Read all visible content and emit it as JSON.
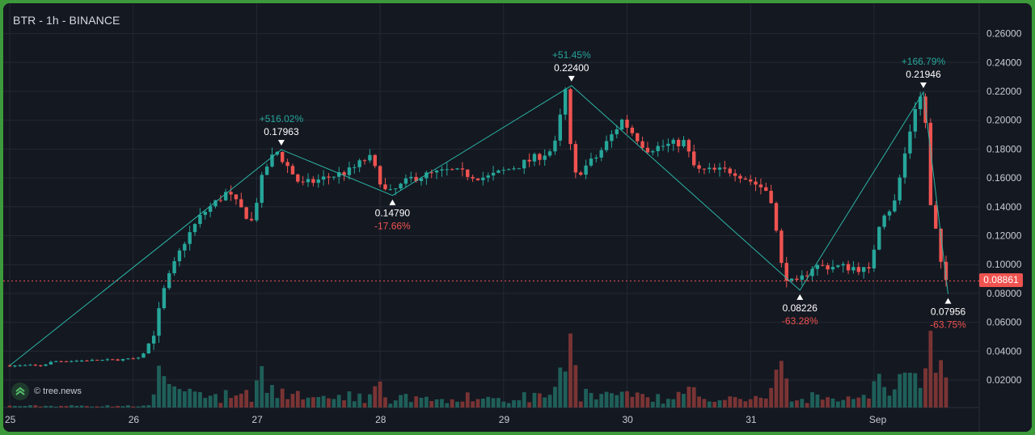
{
  "header": {
    "title": "BTR - 1h - BINANCE"
  },
  "watermark": {
    "text": "© tree.news",
    "icon": "tree-chevrons-icon"
  },
  "last_price_label": "0.08861",
  "colors": {
    "background": "#141821",
    "up": "#26a69a",
    "down": "#ef5350",
    "volume_up": "#1f5f59",
    "volume_down": "#7a3434",
    "zigzag": "#2bb4a4",
    "grid": "#232834",
    "axis_text": "#c9ccd1",
    "last_price_line": "#ef5350"
  },
  "chart_data": {
    "type": "candlestick",
    "title": "BTR - 1h - BINANCE",
    "x_axis": {
      "ticks": [
        "25",
        "26",
        "27",
        "28",
        "29",
        "30",
        "31",
        "Sep"
      ]
    },
    "y_axis": {
      "range": [
        0.0,
        0.27
      ],
      "ticks": [
        "0.02000",
        "0.04000",
        "0.06000",
        "0.08000",
        "0.10000",
        "0.12000",
        "0.14000",
        "0.16000",
        "0.18000",
        "0.20000",
        "0.22000",
        "0.24000",
        "0.26000"
      ]
    },
    "last_price": 0.08861,
    "grid": true,
    "price_path": [
      [
        "25",
        0.03
      ],
      [
        "25.3",
        0.03
      ],
      [
        "25.4",
        0.033
      ],
      [
        "25.9",
        0.034
      ],
      [
        "26.1",
        0.035
      ],
      [
        "26.2",
        0.05
      ],
      [
        "26.3",
        0.085
      ],
      [
        "26.45",
        0.115
      ],
      [
        "26.6",
        0.135
      ],
      [
        "26.8",
        0.15
      ],
      [
        "27.0",
        0.13
      ],
      [
        "27.1",
        0.165
      ],
      [
        "27.2",
        0.179
      ],
      [
        "27.4",
        0.155
      ],
      [
        "27.6",
        0.16
      ],
      [
        "27.8",
        0.165
      ],
      [
        "27.95",
        0.175
      ],
      [
        "28.1",
        0.148
      ],
      [
        "28.3",
        0.16
      ],
      [
        "28.6",
        0.165
      ],
      [
        "28.9",
        0.16
      ],
      [
        "29.2",
        0.17
      ],
      [
        "29.45",
        0.18
      ],
      [
        "29.55",
        0.224
      ],
      [
        "29.6",
        0.16
      ],
      [
        "29.8",
        0.175
      ],
      [
        "30.0",
        0.2
      ],
      [
        "30.2",
        0.18
      ],
      [
        "30.5",
        0.185
      ],
      [
        "30.6",
        0.165
      ],
      [
        "30.9",
        0.165
      ],
      [
        "31.2",
        0.15
      ],
      [
        "31.3",
        0.095
      ],
      [
        "31.4",
        0.085
      ],
      [
        "31.55",
        0.099
      ],
      [
        "31.9",
        0.098
      ],
      [
        "32.0",
        0.095
      ],
      [
        "32.1",
        0.135
      ],
      [
        "32.2",
        0.14
      ],
      [
        "32.3",
        0.18
      ],
      [
        "32.4",
        0.219
      ],
      [
        "32.45",
        0.21
      ],
      [
        "32.5",
        0.14
      ],
      [
        "32.55",
        0.12
      ],
      [
        "32.6",
        0.089
      ]
    ],
    "zigzag_points": [
      {
        "price": 0.17963,
        "label": "0.17963",
        "change": "+516.02%",
        "kind": "high"
      },
      {
        "price": 0.1479,
        "label": "0.14790",
        "change": "-17.66%",
        "kind": "low"
      },
      {
        "price": 0.224,
        "label": "0.22400",
        "change": "+51.45%",
        "kind": "high"
      },
      {
        "price": 0.08226,
        "label": "0.08226",
        "change": "-63.28%",
        "kind": "low"
      },
      {
        "price": 0.21946,
        "label": "0.21946",
        "change": "+166.79%",
        "kind": "high"
      },
      {
        "price": 0.07956,
        "label": "0.07956",
        "change": "-63.75%",
        "kind": "low"
      }
    ]
  }
}
